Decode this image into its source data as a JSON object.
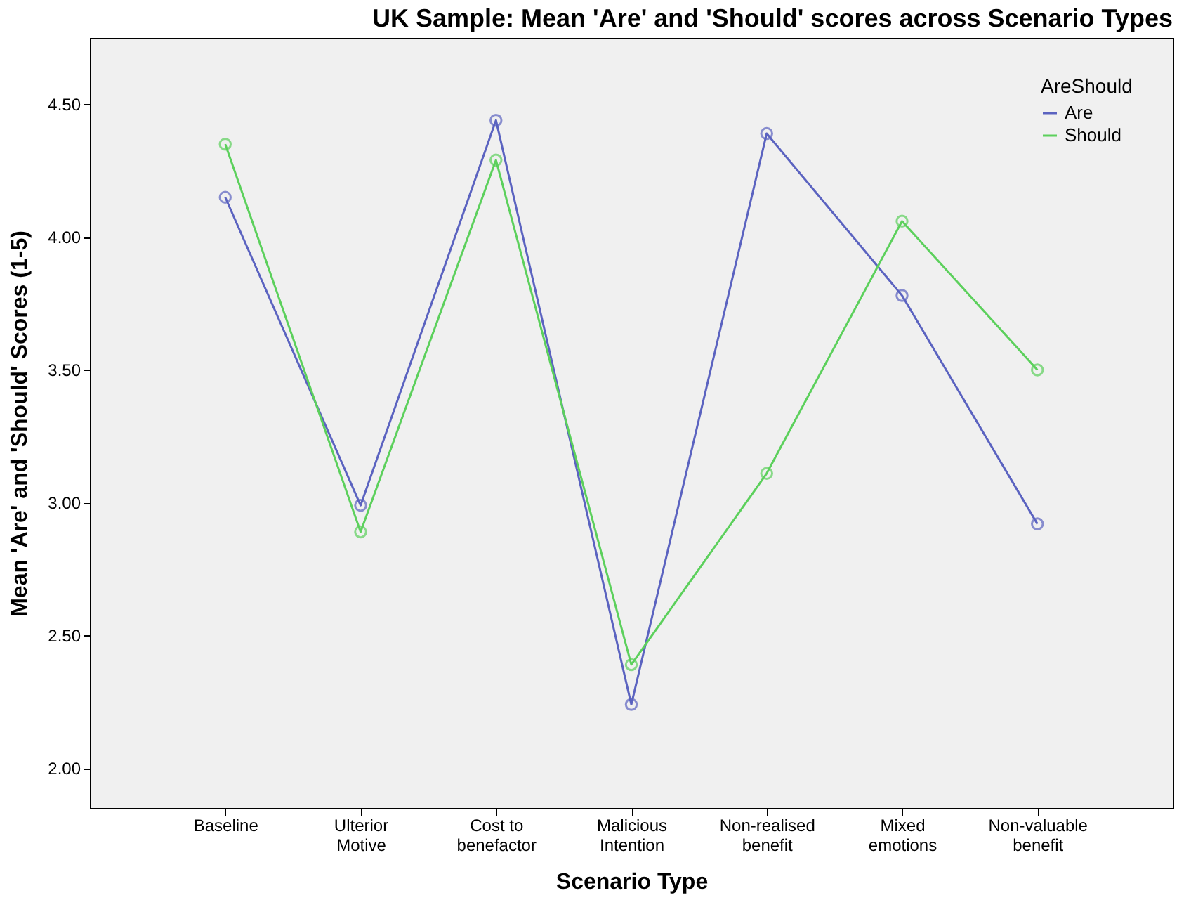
{
  "chart_data": {
    "type": "line",
    "title": "UK Sample: Mean 'Are' and 'Should' scores across Scenario Types",
    "xlabel": "Scenario Type",
    "ylabel": "Mean 'Are' and 'Should' Scores (1-5)",
    "legend_title": "AreShould",
    "categories": [
      "Baseline",
      "Ulterior\nMotive",
      "Cost to\nbenefactor",
      "Malicious\nIntention",
      "Non-realised\nbenefit",
      "Mixed\nemotions",
      "Non-valuable\nbenefit"
    ],
    "series": [
      {
        "name": "Are",
        "color": "#5b63c0",
        "values": [
          4.15,
          2.99,
          4.44,
          2.24,
          4.39,
          3.78,
          2.92
        ]
      },
      {
        "name": "Should",
        "color": "#5cd05c",
        "values": [
          4.35,
          2.89,
          4.29,
          2.39,
          3.11,
          4.06,
          3.5
        ]
      }
    ],
    "ylim": [
      1.85,
      4.75
    ],
    "yticks": [
      {
        "value": 2.0,
        "label": "2.00"
      },
      {
        "value": 2.5,
        "label": "2.50"
      },
      {
        "value": 3.0,
        "label": "3.00"
      },
      {
        "value": 3.5,
        "label": "3.50"
      },
      {
        "value": 4.0,
        "label": "4.00"
      },
      {
        "value": 4.5,
        "label": "4.50"
      }
    ],
    "grid": false,
    "legend": "top right",
    "marker": "circle",
    "line_style": "solid"
  }
}
